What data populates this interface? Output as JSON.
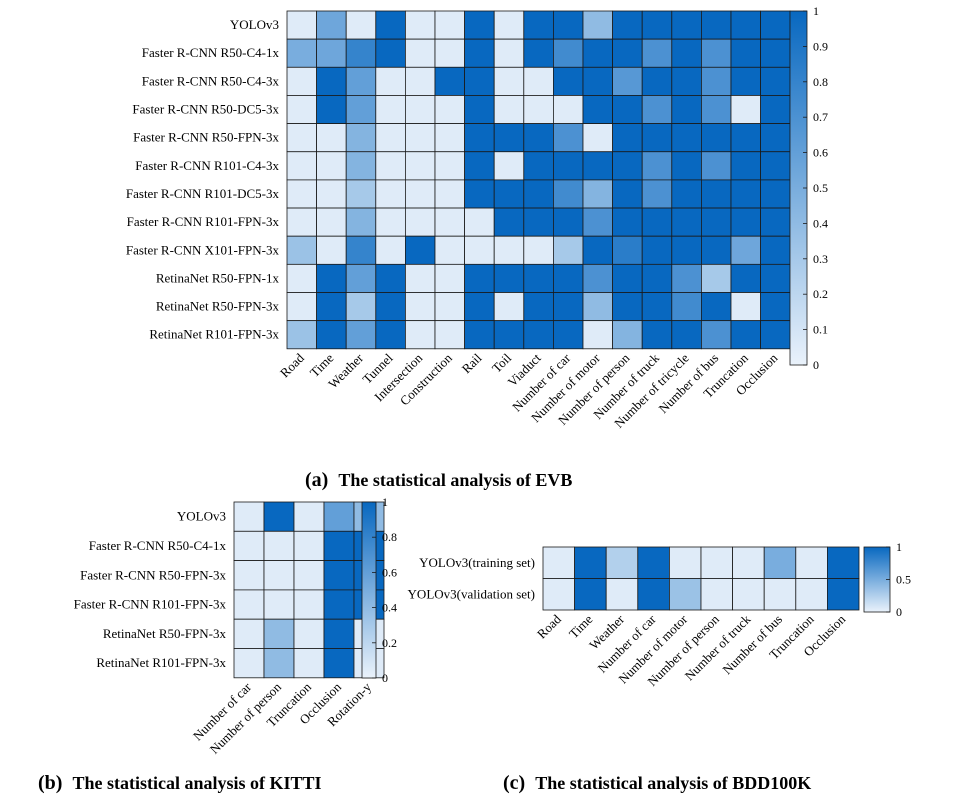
{
  "colors": {
    "low": "#eaf2fb",
    "high": "#0868c0",
    "grid": "#1a1a1a"
  },
  "chart_data": [
    {
      "id": "evb",
      "type": "heatmap",
      "caption_letter": "(a)",
      "caption_text": "The statistical analysis of EVB",
      "rows": [
        "YOLOv3",
        "Faster R-CNN R50-C4-1x",
        "Faster R-CNN R50-C4-3x",
        "Faster R-CNN R50-DC5-3x",
        "Faster R-CNN R50-FPN-3x",
        "Faster R-CNN R101-C4-3x",
        "Faster R-CNN R101-DC5-3x",
        "Faster R-CNN R101-FPN-3x",
        "Faster R-CNN X101-FPN-3x",
        "RetinaNet R50-FPN-1x",
        "RetinaNet R50-FPN-3x",
        "RetinaNet R101-FPN-3x"
      ],
      "columns": [
        "Road",
        "Time",
        "Weather",
        "Tunnel",
        "Intersection",
        "Construction",
        "Rail",
        "Toil",
        "Viaduct",
        "Number of car",
        "Number of motor",
        "Number of person",
        "Number of truck",
        "Number of tricycle",
        "Number of bus",
        "Truncation",
        "Occlusion"
      ],
      "values": [
        [
          0.05,
          0.55,
          0.05,
          1.0,
          0.05,
          0.05,
          1.0,
          0.05,
          1.0,
          1.0,
          0.4,
          1.0,
          1.0,
          1.0,
          1.0,
          1.0,
          1.0
        ],
        [
          0.5,
          0.55,
          0.8,
          1.0,
          0.05,
          0.05,
          1.0,
          0.05,
          1.0,
          0.75,
          1.0,
          1.0,
          0.7,
          1.0,
          0.7,
          1.0,
          1.0
        ],
        [
          0.05,
          1.0,
          0.6,
          0.05,
          0.05,
          1.0,
          1.0,
          0.05,
          0.05,
          1.0,
          1.0,
          0.65,
          1.0,
          1.0,
          0.7,
          1.0,
          1.0
        ],
        [
          0.05,
          1.0,
          0.6,
          0.05,
          0.05,
          0.05,
          1.0,
          0.05,
          0.05,
          0.05,
          1.0,
          1.0,
          0.7,
          1.0,
          0.7,
          0.05,
          1.0
        ],
        [
          0.05,
          0.05,
          0.45,
          0.05,
          0.05,
          0.05,
          1.0,
          1.0,
          1.0,
          0.7,
          0.05,
          1.0,
          1.0,
          1.0,
          1.0,
          1.0,
          1.0
        ],
        [
          0.05,
          0.05,
          0.45,
          0.05,
          0.05,
          0.05,
          1.0,
          0.05,
          1.0,
          1.0,
          1.0,
          1.0,
          0.7,
          1.0,
          0.7,
          1.0,
          1.0
        ],
        [
          0.05,
          0.05,
          0.3,
          0.05,
          0.05,
          0.05,
          1.0,
          1.0,
          1.0,
          0.75,
          0.45,
          1.0,
          0.7,
          1.0,
          1.0,
          1.0,
          1.0
        ],
        [
          0.05,
          0.05,
          0.45,
          0.05,
          0.05,
          0.05,
          0.05,
          1.0,
          1.0,
          1.0,
          0.7,
          1.0,
          1.0,
          1.0,
          1.0,
          1.0,
          1.0
        ],
        [
          0.35,
          0.05,
          0.8,
          0.05,
          1.0,
          0.05,
          0.05,
          0.05,
          0.05,
          0.3,
          1.0,
          0.85,
          1.0,
          1.0,
          1.0,
          0.55,
          1.0
        ],
        [
          0.05,
          1.0,
          0.6,
          1.0,
          0.05,
          0.05,
          1.0,
          1.0,
          1.0,
          1.0,
          0.7,
          1.0,
          1.0,
          0.7,
          0.3,
          1.0,
          1.0
        ],
        [
          0.05,
          1.0,
          0.3,
          1.0,
          0.05,
          0.05,
          1.0,
          0.05,
          1.0,
          1.0,
          0.4,
          1.0,
          1.0,
          0.75,
          1.0,
          0.05,
          1.0
        ],
        [
          0.35,
          1.0,
          0.6,
          1.0,
          0.05,
          0.05,
          1.0,
          1.0,
          1.0,
          1.0,
          0.05,
          0.45,
          1.0,
          1.0,
          0.7,
          1.0,
          1.0
        ]
      ],
      "colorbar": {
        "min": 0,
        "max": 1,
        "ticks": [
          "0",
          "0.1",
          "0.2",
          "0.3",
          "0.4",
          "0.5",
          "0.6",
          "0.7",
          "0.8",
          "0.9",
          "1"
        ]
      }
    },
    {
      "id": "kitti",
      "type": "heatmap",
      "caption_letter": "(b)",
      "caption_text": "The statistical analysis of KITTI",
      "rows": [
        "YOLOv3",
        "Faster R-CNN R50-C4-1x",
        "Faster R-CNN R50-FPN-3x",
        "Faster R-CNN R101-FPN-3x",
        "RetinaNet R50-FPN-3x",
        "RetinaNet R101-FPN-3x"
      ],
      "columns": [
        "Number of car",
        "Number of person",
        "Truncation",
        "Occlusion",
        "Rotation-y"
      ],
      "values": [
        [
          0.05,
          1.0,
          0.05,
          0.6,
          0.4
        ],
        [
          0.05,
          0.05,
          0.05,
          1.0,
          1.0
        ],
        [
          0.05,
          0.05,
          0.05,
          1.0,
          1.0
        ],
        [
          0.05,
          0.05,
          0.05,
          1.0,
          1.0
        ],
        [
          0.05,
          0.4,
          0.05,
          1.0,
          0.05
        ],
        [
          0.05,
          0.4,
          0.05,
          1.0,
          0.05
        ]
      ],
      "colorbar": {
        "min": 0,
        "max": 1,
        "ticks": [
          "0",
          "0.2",
          "0.4",
          "0.6",
          "0.8",
          "1"
        ]
      }
    },
    {
      "id": "bdd100k",
      "type": "heatmap",
      "caption_letter": "(c)",
      "caption_text": "The statistical analysis of BDD100K",
      "rows": [
        "YOLOv3(training set)",
        "YOLOv3(validation set)"
      ],
      "columns": [
        "Road",
        "Time",
        "Weather",
        "Number of car",
        "Number of motor",
        "Number of person",
        "Number of truck",
        "Number of bus",
        "Truncation",
        "Occlusion"
      ],
      "values": [
        [
          0.05,
          1.0,
          0.25,
          1.0,
          0.05,
          0.05,
          0.05,
          0.5,
          0.05,
          1.0
        ],
        [
          0.05,
          1.0,
          0.05,
          1.0,
          0.35,
          0.05,
          0.05,
          0.05,
          0.05,
          1.0
        ]
      ],
      "colorbar": {
        "min": 0,
        "max": 1,
        "ticks": [
          "0",
          "0.5",
          "1"
        ]
      }
    }
  ]
}
